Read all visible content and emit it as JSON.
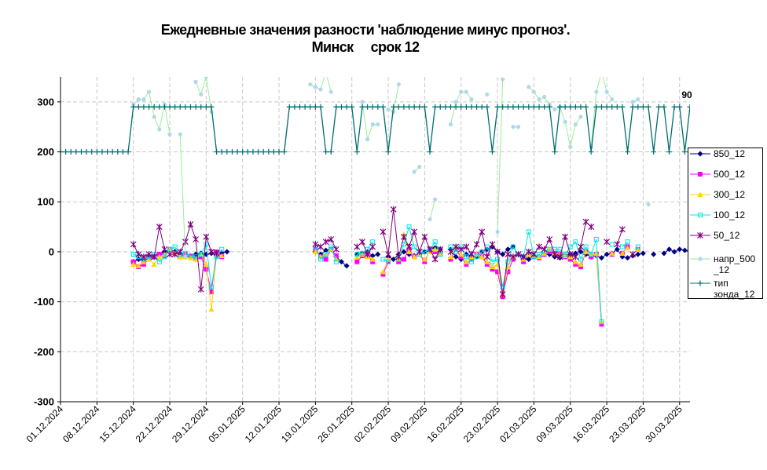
{
  "chart_data": {
    "type": "line",
    "title": "Ежедневные значения разности 'наблюдение минус прогноз'.",
    "subtitle_station": "Минск",
    "subtitle_term": "срок 12",
    "yticks": [
      "300",
      "200",
      "100",
      "0",
      "-100",
      "-200",
      "-300"
    ],
    "ylim": [
      -300,
      350
    ],
    "xlim": [
      "01.12.2024",
      "01.04.2025"
    ],
    "xticks": [
      "01.12.2024",
      "08.12.2024",
      "15.12.2024",
      "22.12.2024",
      "29.12.2024",
      "05.01.2025",
      "12.01.2025",
      "19.01.2025",
      "26.01.2025",
      "02.02.2025",
      "09.02.2025",
      "16.02.2025",
      "23.02.2025",
      "02.03.2025",
      "09.03.2025",
      "16.03.2025",
      "23.03.2025",
      "30.03.2025"
    ],
    "annotation": "90",
    "grid": true,
    "legend_position": "right",
    "series": [
      {
        "name": "850_12",
        "color": "#000080",
        "marker": "diamond",
        "start": "15.12.2024",
        "values": [
          -20,
          -15,
          -18,
          -12,
          -10,
          -5,
          0,
          5,
          0,
          -5,
          -10,
          -8,
          -5,
          -3,
          -5,
          -3,
          -8,
          -2,
          0,
          null,
          null,
          null,
          null,
          null,
          null,
          null,
          null,
          null,
          null,
          null,
          null,
          null,
          null,
          null,
          null,
          0,
          -5,
          3,
          5,
          -10,
          -20,
          -28,
          null,
          -5,
          -3,
          0,
          -8,
          -5,
          null,
          -10,
          -15,
          -5,
          0,
          -5,
          -8,
          -3,
          0,
          5,
          8,
          5,
          null,
          5,
          -10,
          -15,
          -5,
          -8,
          -10,
          0,
          5,
          10,
          0,
          -5,
          5,
          10,
          -5,
          -10,
          -15,
          -8,
          -10,
          -5,
          -5,
          -10,
          -12,
          -8,
          -5,
          -3,
          0,
          -5,
          -10,
          -8,
          -12,
          -5,
          -3,
          5,
          -10,
          -12,
          -8,
          -5,
          -3,
          null,
          -5,
          null,
          -3,
          5,
          0,
          5,
          3,
          0
        ]
      },
      {
        "name": "500_12",
        "color": "#ff00ff",
        "marker": "square",
        "start": "15.12.2024",
        "values": [
          -20,
          -30,
          -25,
          -15,
          -10,
          -5,
          -8,
          5,
          -3,
          -10,
          -5,
          -8,
          -15,
          -10,
          -35,
          -80,
          0,
          -10,
          null,
          null,
          null,
          null,
          null,
          null,
          null,
          null,
          null,
          null,
          null,
          null,
          null,
          null,
          null,
          null,
          null,
          5,
          -10,
          -15,
          5,
          -8,
          null,
          null,
          null,
          -20,
          -8,
          -5,
          -20,
          null,
          -45,
          -20,
          null,
          -20,
          -15,
          5,
          -10,
          -5,
          -20,
          5,
          0,
          -5,
          null,
          -15,
          5,
          -10,
          -25,
          -15,
          -5,
          -10,
          -25,
          -35,
          -40,
          -90,
          -40,
          -15,
          -5,
          -20,
          -5,
          -10,
          -12,
          -5,
          0,
          -3,
          -5,
          -10,
          -15,
          -25,
          -30,
          0,
          -10,
          -5,
          -145,
          null,
          -5,
          null,
          -3,
          10,
          null,
          5
        ]
      },
      {
        "name": "300_12",
        "color": "#ffd700",
        "marker": "triangle",
        "start": "15.12.2024",
        "values": [
          -25,
          -28,
          -20,
          -15,
          -25,
          -10,
          -5,
          5,
          -3,
          -10,
          -10,
          -12,
          -15,
          -5,
          -25,
          -115,
          -5,
          -8,
          null,
          null,
          null,
          null,
          null,
          null,
          null,
          null,
          null,
          null,
          null,
          null,
          null,
          null,
          null,
          null,
          null,
          0,
          -10,
          -5,
          5,
          -15,
          null,
          null,
          null,
          -10,
          -5,
          -10,
          -15,
          null,
          -40,
          -15,
          null,
          -15,
          35,
          0,
          -10,
          -5,
          -15,
          0,
          5,
          -5,
          null,
          -10,
          10,
          -5,
          -20,
          -10,
          -5,
          -10,
          -20,
          -30,
          -25,
          -85,
          -30,
          -10,
          -5,
          -15,
          -5,
          -8,
          -10,
          -3,
          5,
          -3,
          -5,
          -8,
          -10,
          -20,
          -25,
          0,
          -5,
          -3,
          -140,
          null,
          -3,
          null,
          -3,
          8,
          null,
          5
        ]
      },
      {
        "name": "100_12",
        "color": "#00e5e5",
        "marker": "square-open",
        "start": "15.12.2024",
        "values": [
          -5,
          -10,
          -15,
          -10,
          -5,
          -20,
          -10,
          5,
          10,
          -5,
          -3,
          -8,
          -10,
          -5,
          15,
          -70,
          -10,
          5,
          null,
          null,
          null,
          null,
          null,
          null,
          null,
          null,
          null,
          null,
          null,
          null,
          null,
          null,
          null,
          null,
          null,
          10,
          -15,
          -5,
          10,
          -20,
          null,
          null,
          null,
          -5,
          -3,
          5,
          20,
          null,
          -15,
          -20,
          null,
          -15,
          15,
          50,
          10,
          -5,
          0,
          5,
          20,
          -5,
          null,
          10,
          0,
          10,
          -10,
          -20,
          -10,
          0,
          10,
          -20,
          -15,
          -70,
          -20,
          10,
          -5,
          -10,
          40,
          -10,
          -5,
          0,
          5,
          5,
          5,
          -5,
          10,
          20,
          -15,
          10,
          -5,
          25,
          -140,
          null,
          15,
          null,
          10,
          20,
          null,
          10
        ]
      },
      {
        "name": "50_12",
        "color": "#800080",
        "marker": "star",
        "start": "15.12.2024",
        "values": [
          15,
          -5,
          -10,
          -5,
          -10,
          50,
          5,
          -5,
          -5,
          0,
          20,
          55,
          25,
          -75,
          30,
          0,
          -3,
          null,
          null,
          null,
          null,
          null,
          null,
          null,
          null,
          null,
          null,
          null,
          null,
          null,
          null,
          null,
          null,
          null,
          null,
          15,
          10,
          20,
          25,
          5,
          null,
          null,
          null,
          10,
          20,
          -5,
          10,
          null,
          40,
          -5,
          85,
          -10,
          30,
          10,
          40,
          0,
          30,
          5,
          -15,
          5,
          null,
          0,
          10,
          5,
          10,
          -5,
          15,
          40,
          -10,
          15,
          0,
          -85,
          -5,
          -10,
          -5,
          -10,
          0,
          -5,
          10,
          5,
          25,
          -5,
          -10,
          30,
          -5,
          -10,
          10,
          60,
          50,
          null,
          null,
          20,
          null,
          15,
          45,
          null,
          -5
        ]
      },
      {
        "name": "напр_500_12",
        "color": "#b0d8e8",
        "marker": "circle",
        "start": "15.12.2024",
        "values": [
          295,
          305,
          305,
          320,
          270,
          245,
          295,
          235,
          null,
          235,
          -10,
          null,
          340,
          315,
          350,
          280,
          null,
          null,
          null,
          null,
          null,
          null,
          null,
          null,
          null,
          null,
          null,
          null,
          null,
          null,
          null,
          null,
          null,
          null,
          335,
          330,
          325,
          360,
          320,
          null,
          null,
          null,
          null,
          null,
          300,
          225,
          255,
          255,
          null,
          285,
          280,
          335,
          null,
          null,
          160,
          170,
          null,
          65,
          105,
          null,
          null,
          255,
          300,
          320,
          320,
          305,
          null,
          null,
          315,
          null,
          40,
          345,
          null,
          250,
          250,
          null,
          330,
          320,
          305,
          310,
          295,
          285,
          290,
          260,
          210,
          255,
          270,
          null,
          210,
          320,
          360,
          320,
          305,
          null,
          null,
          null,
          300,
          305,
          null,
          95
        ]
      },
      {
        "name": "тип зонда_12",
        "color": "#006e6e",
        "marker": "plus",
        "start": "01.12.2024",
        "values": [
          200,
          200,
          200,
          200,
          200,
          200,
          200,
          200,
          200,
          200,
          200,
          200,
          200,
          200,
          290,
          290,
          290,
          290,
          290,
          290,
          290,
          290,
          290,
          290,
          290,
          290,
          290,
          290,
          290,
          290,
          200,
          200,
          200,
          200,
          200,
          200,
          200,
          200,
          200,
          200,
          200,
          200,
          200,
          200,
          290,
          290,
          290,
          290,
          290,
          290,
          290,
          200,
          200,
          290,
          290,
          290,
          290,
          200,
          290,
          290,
          290,
          290,
          290,
          200,
          290,
          290,
          290,
          290,
          290,
          290,
          290,
          200,
          290,
          290,
          290,
          290,
          290,
          290,
          290,
          290,
          290,
          290,
          290,
          200,
          290,
          290,
          290,
          290,
          290,
          290,
          290,
          290,
          290,
          290,
          290,
          200,
          290,
          290,
          290,
          290,
          290,
          290,
          200,
          290,
          290,
          290,
          290,
          290,
          290,
          200,
          290,
          290,
          290,
          290,
          200,
          290,
          290,
          200,
          290,
          290,
          200,
          290,
          290,
          290
        ]
      }
    ],
    "legend_labels": [
      "850_12",
      "500_12",
      "300_12",
      "100_12",
      "50_12",
      "напр_500\n_12",
      "тип\nзонда_12"
    ]
  }
}
